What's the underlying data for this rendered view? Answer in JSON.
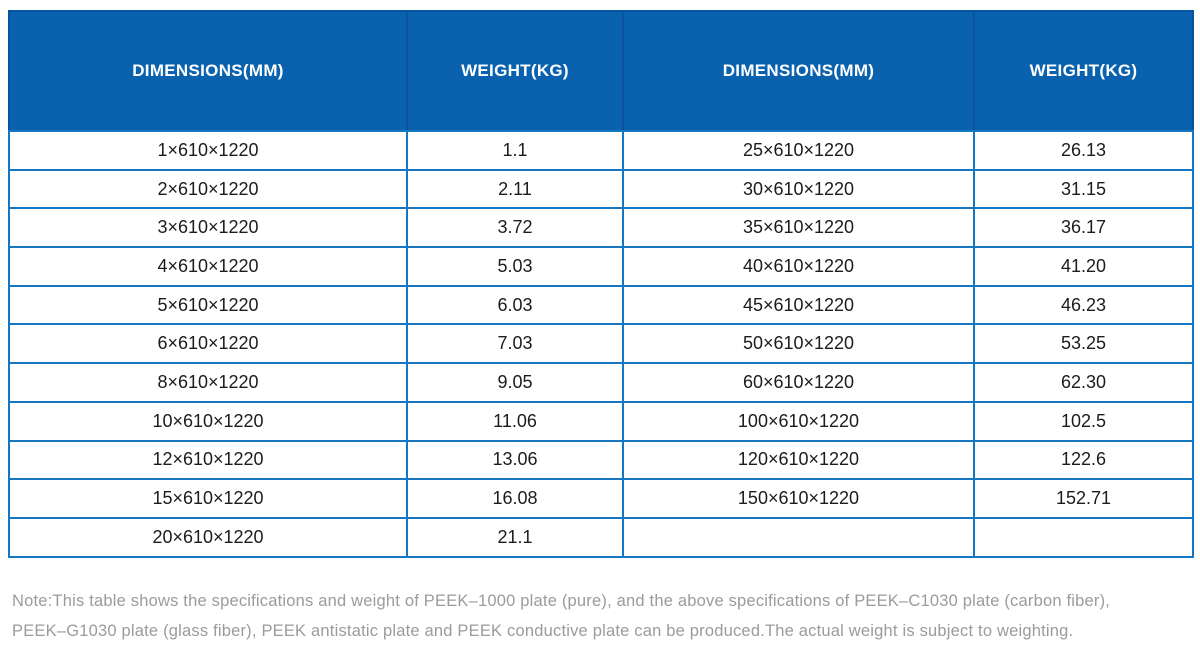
{
  "table": {
    "columns": [
      {
        "label": "DIMENSIONS(MM)"
      },
      {
        "label": "WEIGHT(KG)"
      },
      {
        "label": "DIMENSIONS(MM)"
      },
      {
        "label": "WEIGHT(KG)"
      }
    ],
    "rows": [
      [
        "1×610×1220",
        "1.1",
        "25×610×1220",
        "26.13"
      ],
      [
        "2×610×1220",
        "2.11",
        "30×610×1220",
        "31.15"
      ],
      [
        "3×610×1220",
        "3.72",
        "35×610×1220",
        "36.17"
      ],
      [
        "4×610×1220",
        "5.03",
        "40×610×1220",
        "41.20"
      ],
      [
        "5×610×1220",
        "6.03",
        "45×610×1220",
        "46.23"
      ],
      [
        "6×610×1220",
        "7.03",
        "50×610×1220",
        "53.25"
      ],
      [
        "8×610×1220",
        "9.05",
        "60×610×1220",
        "62.30"
      ],
      [
        "10×610×1220",
        "11.06",
        "100×610×1220",
        "102.5"
      ],
      [
        "12×610×1220",
        "13.06",
        "120×610×1220",
        "122.6"
      ],
      [
        "15×610×1220",
        "16.08",
        "150×610×1220",
        "152.71"
      ],
      [
        "20×610×1220",
        "21.1",
        "",
        ""
      ]
    ]
  },
  "note": {
    "line1": "Note:This table shows the specifications and weight of PEEK–1000 plate (pure), and the above specifications of PEEK–C1030 plate (carbon fiber),",
    "line2": "PEEK–G1030 plate (glass fiber), PEEK antistatic plate and PEEK conductive plate can be produced.The actual weight is subject to weighting."
  },
  "colors": {
    "header_bg": "#0a62ae",
    "header_divider": "#0b549c",
    "header_top_border": "#0353a0",
    "body_border": "#1577c1",
    "body_text": "#1c1c1c",
    "note_text": "#9b9b9b"
  }
}
